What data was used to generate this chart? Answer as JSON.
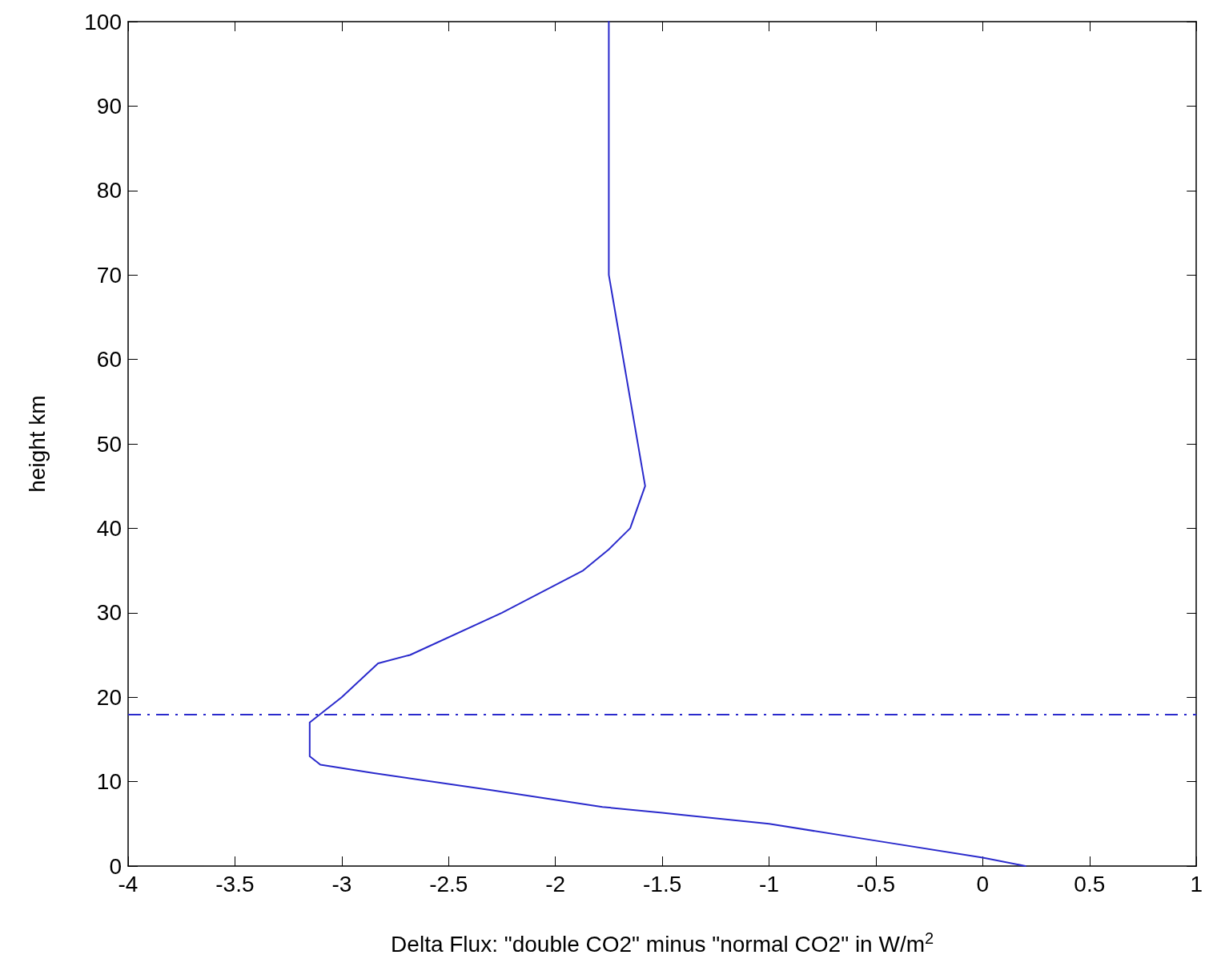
{
  "chart_data": {
    "type": "line",
    "xlabel": "Delta Flux: \"double CO2\" minus \"normal CO2\" in W/m$^{2}$",
    "ylabel": "height km",
    "series": [
      {
        "color": "#2a2acc",
        "x": [
          0.2,
          0,
          -0.5,
          -1,
          -1.5,
          -1.78,
          -2.3,
          -2.85,
          -3.1,
          -3.15,
          -3.15,
          -3.1,
          -3.0,
          -2.83,
          -2.68,
          -2.25,
          -1.87,
          -1.75,
          -1.65,
          -1.58,
          -1.75,
          -1.75
        ],
        "values": [
          0,
          1,
          3,
          5,
          6.3,
          7,
          9,
          11,
          12,
          13,
          17,
          18,
          20,
          24,
          25,
          30,
          35,
          37.5,
          40,
          45,
          70,
          100
        ]
      }
    ],
    "xlim": [
      -4,
      1
    ],
    "xticks": [
      -4,
      -3.5,
      -3,
      -2.5,
      -2,
      -1.5,
      -1,
      -0.5,
      0,
      0.5,
      1
    ],
    "ylim": [
      0,
      100
    ],
    "yticks": [
      0,
      10,
      20,
      30,
      40,
      50,
      60,
      70,
      80,
      90,
      100
    ],
    "ref_lines": [
      {
        "axis": "y",
        "value": 18,
        "color": "#2a2acc",
        "line_style": "dashed"
      }
    ],
    "grid": false,
    "marker": "none",
    "line_style": "solid"
  }
}
